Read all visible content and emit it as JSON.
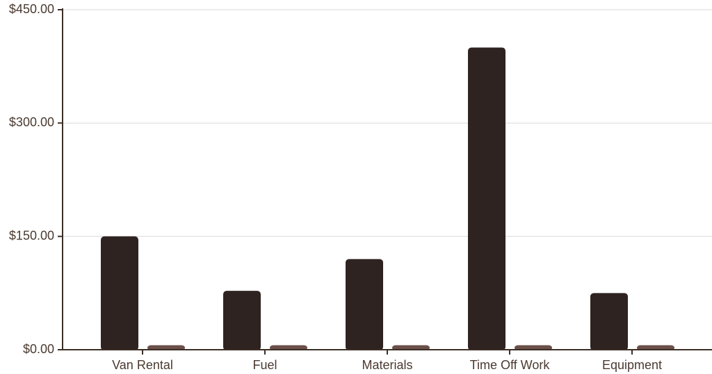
{
  "chart_data": {
    "type": "bar",
    "categories": [
      "Van Rental",
      "Fuel",
      "Materials",
      "Time Off Work",
      "Equipment"
    ],
    "series": [
      {
        "color": "#2e2320",
        "values": [
          150,
          78,
          120,
          400,
          75
        ]
      },
      {
        "color": "#6b504a",
        "values": [
          6,
          6,
          6,
          6,
          6
        ]
      }
    ],
    "ylim": [
      0,
      450
    ],
    "yticks": [
      {
        "value": 0,
        "label": "$0.00"
      },
      {
        "value": 150,
        "label": "$150.00"
      },
      {
        "value": 300,
        "label": "$300.00"
      },
      {
        "value": 450,
        "label": "$450.00"
      }
    ],
    "grid": true
  }
}
